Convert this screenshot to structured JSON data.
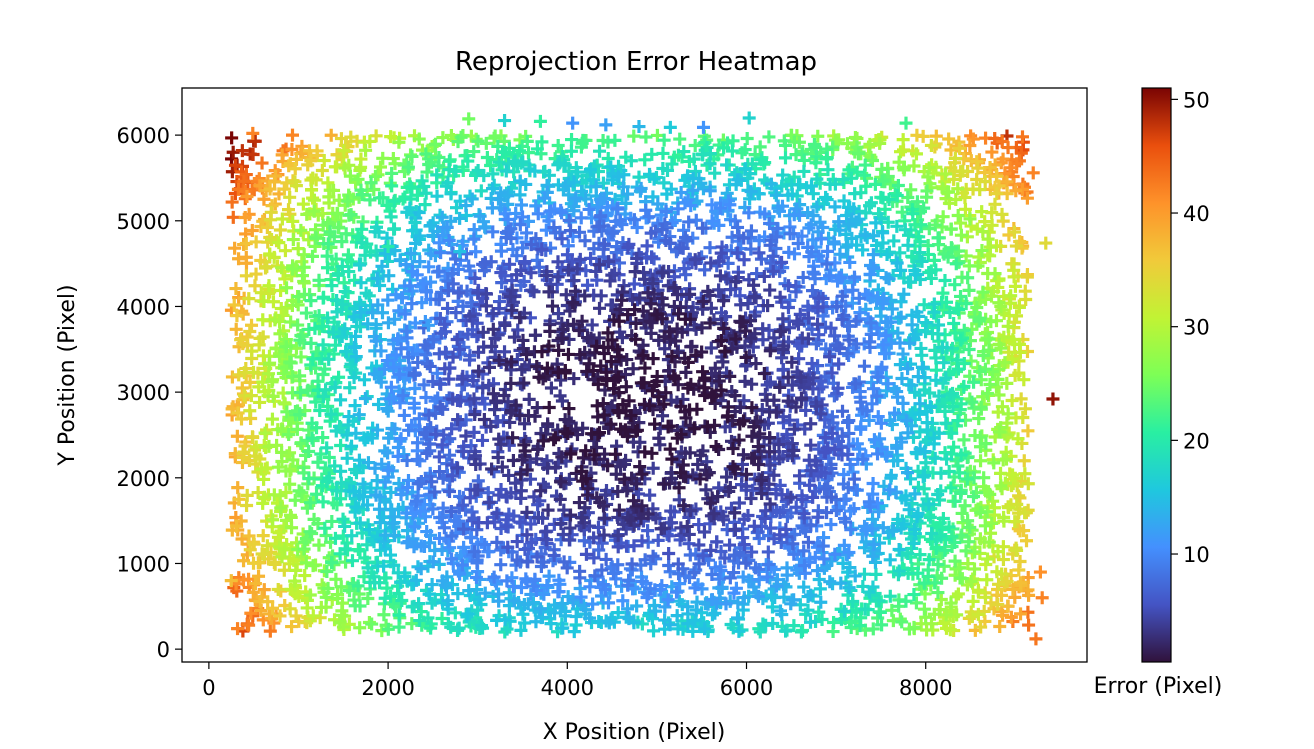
{
  "chart_data": {
    "type": "heatmap",
    "title": "Reprojection Error Heatmap",
    "xlabel": "X Position (Pixel)",
    "ylabel": "Y Position (Pixel)",
    "xlim": [
      -300,
      9800
    ],
    "ylim": [
      -150,
      6550
    ],
    "xticks": [
      0,
      2000,
      4000,
      6000,
      8000
    ],
    "yticks": [
      0,
      1000,
      2000,
      3000,
      4000,
      5000,
      6000
    ],
    "marker": "plus",
    "grid": false,
    "colorbar": {
      "label": "Error (Pixel)",
      "colormap": "turbo",
      "range": [
        0.5,
        51
      ],
      "ticks": [
        10,
        20,
        30,
        40,
        50
      ]
    },
    "field": {
      "x_range": [
        250,
        9150
      ],
      "y_range": [
        200,
        6000
      ],
      "center": [
        4800,
        2900
      ],
      "min_error": 1,
      "corner_error": 42,
      "outliers": [
        {
          "x": 9420,
          "y": 2920,
          "error": 50
        },
        {
          "x": 9230,
          "y": 120,
          "error": 43
        },
        {
          "x": 9300,
          "y": 600,
          "error": 42
        },
        {
          "x": 9280,
          "y": 900,
          "error": 41
        },
        {
          "x": 9340,
          "y": 4740,
          "error": 34
        },
        {
          "x": 9200,
          "y": 5560,
          "error": 42
        },
        {
          "x": 9080,
          "y": 5980,
          "error": 43
        },
        {
          "x": 8770,
          "y": 5960,
          "error": 44
        },
        {
          "x": 490,
          "y": 6020,
          "error": 42
        },
        {
          "x": 320,
          "y": 240,
          "error": 42
        },
        {
          "x": 250,
          "y": 800,
          "error": 37
        },
        {
          "x": 2900,
          "y": 6190,
          "error": 25
        },
        {
          "x": 3300,
          "y": 6170,
          "error": 17
        },
        {
          "x": 3700,
          "y": 6160,
          "error": 21
        },
        {
          "x": 4060,
          "y": 6140,
          "error": 11
        },
        {
          "x": 4430,
          "y": 6120,
          "error": 12
        },
        {
          "x": 4800,
          "y": 6100,
          "error": 14
        },
        {
          "x": 5150,
          "y": 6090,
          "error": 16
        },
        {
          "x": 5520,
          "y": 6090,
          "error": 11
        },
        {
          "x": 6030,
          "y": 6200,
          "error": 17
        },
        {
          "x": 7780,
          "y": 6140,
          "error": 22
        },
        {
          "x": 2300,
          "y": 4980,
          "error": 17
        },
        {
          "x": 2000,
          "y": 4700,
          "error": 20
        },
        {
          "x": 2160,
          "y": 4100,
          "error": 11
        },
        {
          "x": 2450,
          "y": 3780,
          "error": 12
        },
        {
          "x": 2800,
          "y": 4640,
          "error": 15
        }
      ]
    }
  }
}
